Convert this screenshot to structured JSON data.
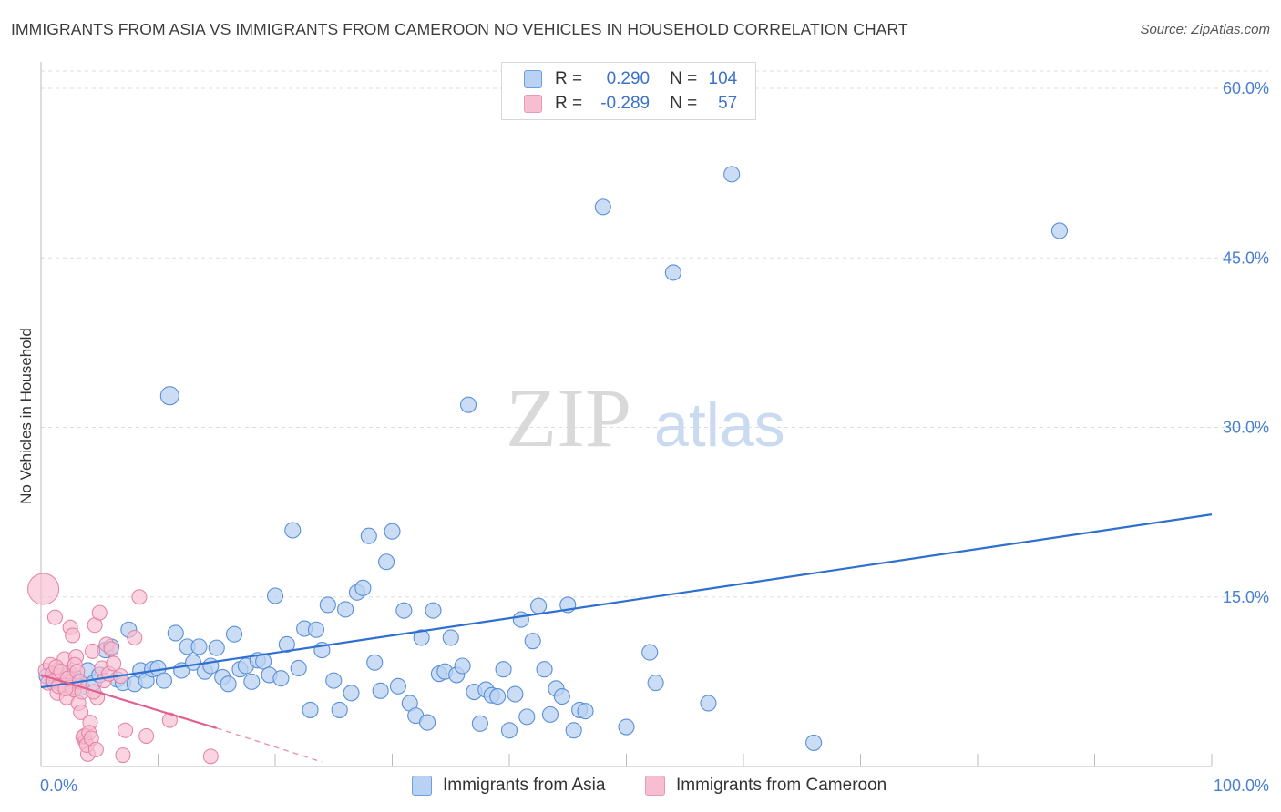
{
  "title": "IMMIGRANTS FROM ASIA VS IMMIGRANTS FROM CAMEROON NO VEHICLES IN HOUSEHOLD CORRELATION CHART",
  "source": "Source: ZipAtlas.com",
  "watermark": {
    "zip": "ZIP",
    "atlas": "atlas"
  },
  "legend": {
    "r_label": "R =",
    "n_label": "N =",
    "asia": {
      "r": "0.290",
      "n": "104"
    },
    "cameroon": {
      "r": "-0.289",
      "n": "57"
    }
  },
  "colors": {
    "asia_fill": "#b9d1f2",
    "asia_stroke": "#5a8fd8",
    "asia_line": "#2f6fd0",
    "cameroon_fill": "#f7bdd0",
    "cameroon_stroke": "#e47fa2",
    "cameroon_line": "#e0608f",
    "tick_label": "#4a7fd0",
    "grid": "#dddddd"
  },
  "chart_data": {
    "type": "scatter",
    "title": "IMMIGRANTS FROM ASIA VS IMMIGRANTS FROM CAMEROON NO VEHICLES IN HOUSEHOLD CORRELATION CHART",
    "xlabel": "",
    "ylabel": "No Vehicles in Household",
    "xlim": [
      0,
      100
    ],
    "ylim": [
      0,
      62
    ],
    "x_tick_labels": [
      "0.0%",
      "100.0%"
    ],
    "y_ticks": [
      15,
      30,
      45,
      60
    ],
    "y_tick_labels": [
      "15.0%",
      "30.0%",
      "45.0%",
      "60.0%"
    ],
    "grid": true,
    "legend_position": "top-center",
    "series": [
      {
        "name": "Immigrants from Asia",
        "trend": {
          "x": [
            0,
            100
          ],
          "y": [
            7.0,
            22.3
          ]
        },
        "points": [
          [
            0.5,
            8.0
          ],
          [
            1,
            7.5
          ],
          [
            1.5,
            8.5
          ],
          [
            2,
            7.2
          ],
          [
            2.5,
            8.2
          ],
          [
            3,
            7.8
          ],
          [
            3.5,
            7.0
          ],
          [
            4,
            8.5
          ],
          [
            4.5,
            7.4
          ],
          [
            5,
            8.1
          ],
          [
            5.5,
            10.3
          ],
          [
            6,
            10.6
          ],
          [
            6.5,
            7.7
          ],
          [
            7,
            7.4
          ],
          [
            7.5,
            12.1
          ],
          [
            8,
            7.3
          ],
          [
            8.5,
            8.5
          ],
          [
            9,
            7.6
          ],
          [
            9.5,
            8.6
          ],
          [
            10,
            8.7
          ],
          [
            10.5,
            7.6
          ],
          [
            11,
            32.8
          ],
          [
            11.5,
            11.8
          ],
          [
            12,
            8.5
          ],
          [
            12.5,
            10.6
          ],
          [
            13,
            9.2
          ],
          [
            13.5,
            10.6
          ],
          [
            14,
            8.4
          ],
          [
            14.5,
            8.9
          ],
          [
            15,
            10.5
          ],
          [
            15.5,
            7.9
          ],
          [
            16,
            7.3
          ],
          [
            16.5,
            11.7
          ],
          [
            17,
            8.6
          ],
          [
            17.5,
            8.9
          ],
          [
            18,
            7.5
          ],
          [
            18.5,
            9.4
          ],
          [
            19,
            9.3
          ],
          [
            19.5,
            8.1
          ],
          [
            20,
            15.1
          ],
          [
            20.5,
            7.8
          ],
          [
            21,
            10.8
          ],
          [
            21.5,
            20.9
          ],
          [
            22,
            8.7
          ],
          [
            22.5,
            12.2
          ],
          [
            23,
            5.0
          ],
          [
            23.5,
            12.1
          ],
          [
            24,
            10.3
          ],
          [
            24.5,
            14.3
          ],
          [
            25,
            7.6
          ],
          [
            25.5,
            5.0
          ],
          [
            26,
            13.9
          ],
          [
            26.5,
            6.5
          ],
          [
            27,
            15.4
          ],
          [
            27.5,
            15.8
          ],
          [
            28,
            20.4
          ],
          [
            28.5,
            9.2
          ],
          [
            29,
            6.7
          ],
          [
            29.5,
            18.1
          ],
          [
            30,
            20.8
          ],
          [
            30.5,
            7.1
          ],
          [
            31,
            13.8
          ],
          [
            31.5,
            5.6
          ],
          [
            32,
            4.5
          ],
          [
            32.5,
            11.4
          ],
          [
            33,
            3.9
          ],
          [
            33.5,
            13.8
          ],
          [
            34,
            8.2
          ],
          [
            34.5,
            8.4
          ],
          [
            35,
            11.4
          ],
          [
            35.5,
            8.1
          ],
          [
            36,
            8.9
          ],
          [
            36.5,
            32.0
          ],
          [
            37,
            6.6
          ],
          [
            37.5,
            3.8
          ],
          [
            38,
            6.8
          ],
          [
            38.5,
            6.3
          ],
          [
            39,
            6.2
          ],
          [
            39.5,
            8.6
          ],
          [
            40,
            3.2
          ],
          [
            40.5,
            6.4
          ],
          [
            41,
            13.0
          ],
          [
            41.5,
            4.4
          ],
          [
            42,
            11.1
          ],
          [
            42.5,
            14.2
          ],
          [
            43,
            8.6
          ],
          [
            43.5,
            4.6
          ],
          [
            44,
            6.9
          ],
          [
            44.5,
            6.2
          ],
          [
            45,
            14.3
          ],
          [
            45.5,
            3.2
          ],
          [
            46,
            5.0
          ],
          [
            46.5,
            4.9
          ],
          [
            48,
            49.5
          ],
          [
            50,
            3.5
          ],
          [
            52,
            10.1
          ],
          [
            52.5,
            7.4
          ],
          [
            54,
            43.7
          ],
          [
            57,
            5.6
          ],
          [
            59,
            52.4
          ],
          [
            66,
            2.1
          ],
          [
            87,
            47.4
          ],
          [
            1.2,
            7.9
          ],
          [
            2.8,
            7.6
          ]
        ]
      },
      {
        "name": "Immigrants from Cameroon",
        "trend": {
          "x": [
            0,
            15
          ],
          "y": [
            8.1,
            3.4
          ]
        },
        "trend_dashed": {
          "x": [
            15,
            24
          ],
          "y": [
            3.4,
            0.4
          ]
        },
        "points": [
          [
            0.2,
            15.7
          ],
          [
            0.4,
            8.5
          ],
          [
            0.6,
            7.4
          ],
          [
            0.8,
            9.0
          ],
          [
            1,
            8.2
          ],
          [
            1.2,
            13.2
          ],
          [
            1.4,
            6.5
          ],
          [
            1.6,
            8.0
          ],
          [
            1.8,
            7.2
          ],
          [
            2,
            9.5
          ],
          [
            2.2,
            6.1
          ],
          [
            2.4,
            8.4
          ],
          [
            2.6,
            7.0
          ],
          [
            2.8,
            6.8
          ],
          [
            3,
            9.7
          ],
          [
            3.2,
            5.6
          ],
          [
            3.4,
            4.8
          ],
          [
            3.6,
            2.6
          ],
          [
            3.8,
            2.2
          ],
          [
            4,
            1.1
          ],
          [
            4.2,
            3.9
          ],
          [
            4.4,
            10.2
          ],
          [
            4.6,
            12.5
          ],
          [
            4.8,
            6.1
          ],
          [
            5,
            13.6
          ],
          [
            5.2,
            8.7
          ],
          [
            5.4,
            7.6
          ],
          [
            5.6,
            10.8
          ],
          [
            5.8,
            8.2
          ],
          [
            6,
            10.4
          ],
          [
            1.1,
            7.6
          ],
          [
            1.3,
            8.8
          ],
          [
            1.5,
            7.1
          ],
          [
            1.7,
            8.4
          ],
          [
            2.1,
            6.9
          ],
          [
            2.3,
            7.8
          ],
          [
            2.5,
            12.3
          ],
          [
            2.7,
            11.6
          ],
          [
            2.9,
            9.0
          ],
          [
            3.1,
            8.4
          ],
          [
            3.3,
            7.5
          ],
          [
            3.5,
            6.6
          ],
          [
            3.7,
            2.7
          ],
          [
            3.9,
            1.9
          ],
          [
            4.1,
            3.0
          ],
          [
            4.3,
            2.5
          ],
          [
            4.5,
            6.6
          ],
          [
            4.7,
            1.5
          ],
          [
            6.2,
            9.1
          ],
          [
            6.8,
            8.0
          ],
          [
            7,
            1.0
          ],
          [
            7.2,
            3.2
          ],
          [
            8,
            11.4
          ],
          [
            8.4,
            15.0
          ],
          [
            9,
            2.7
          ],
          [
            11,
            4.1
          ],
          [
            14.5,
            0.9
          ]
        ]
      }
    ],
    "legend": [
      {
        "label": "Immigrants from Asia",
        "color": "#b9d1f2"
      },
      {
        "label": "Immigrants from Cameroon",
        "color": "#f7bdd0"
      }
    ]
  }
}
